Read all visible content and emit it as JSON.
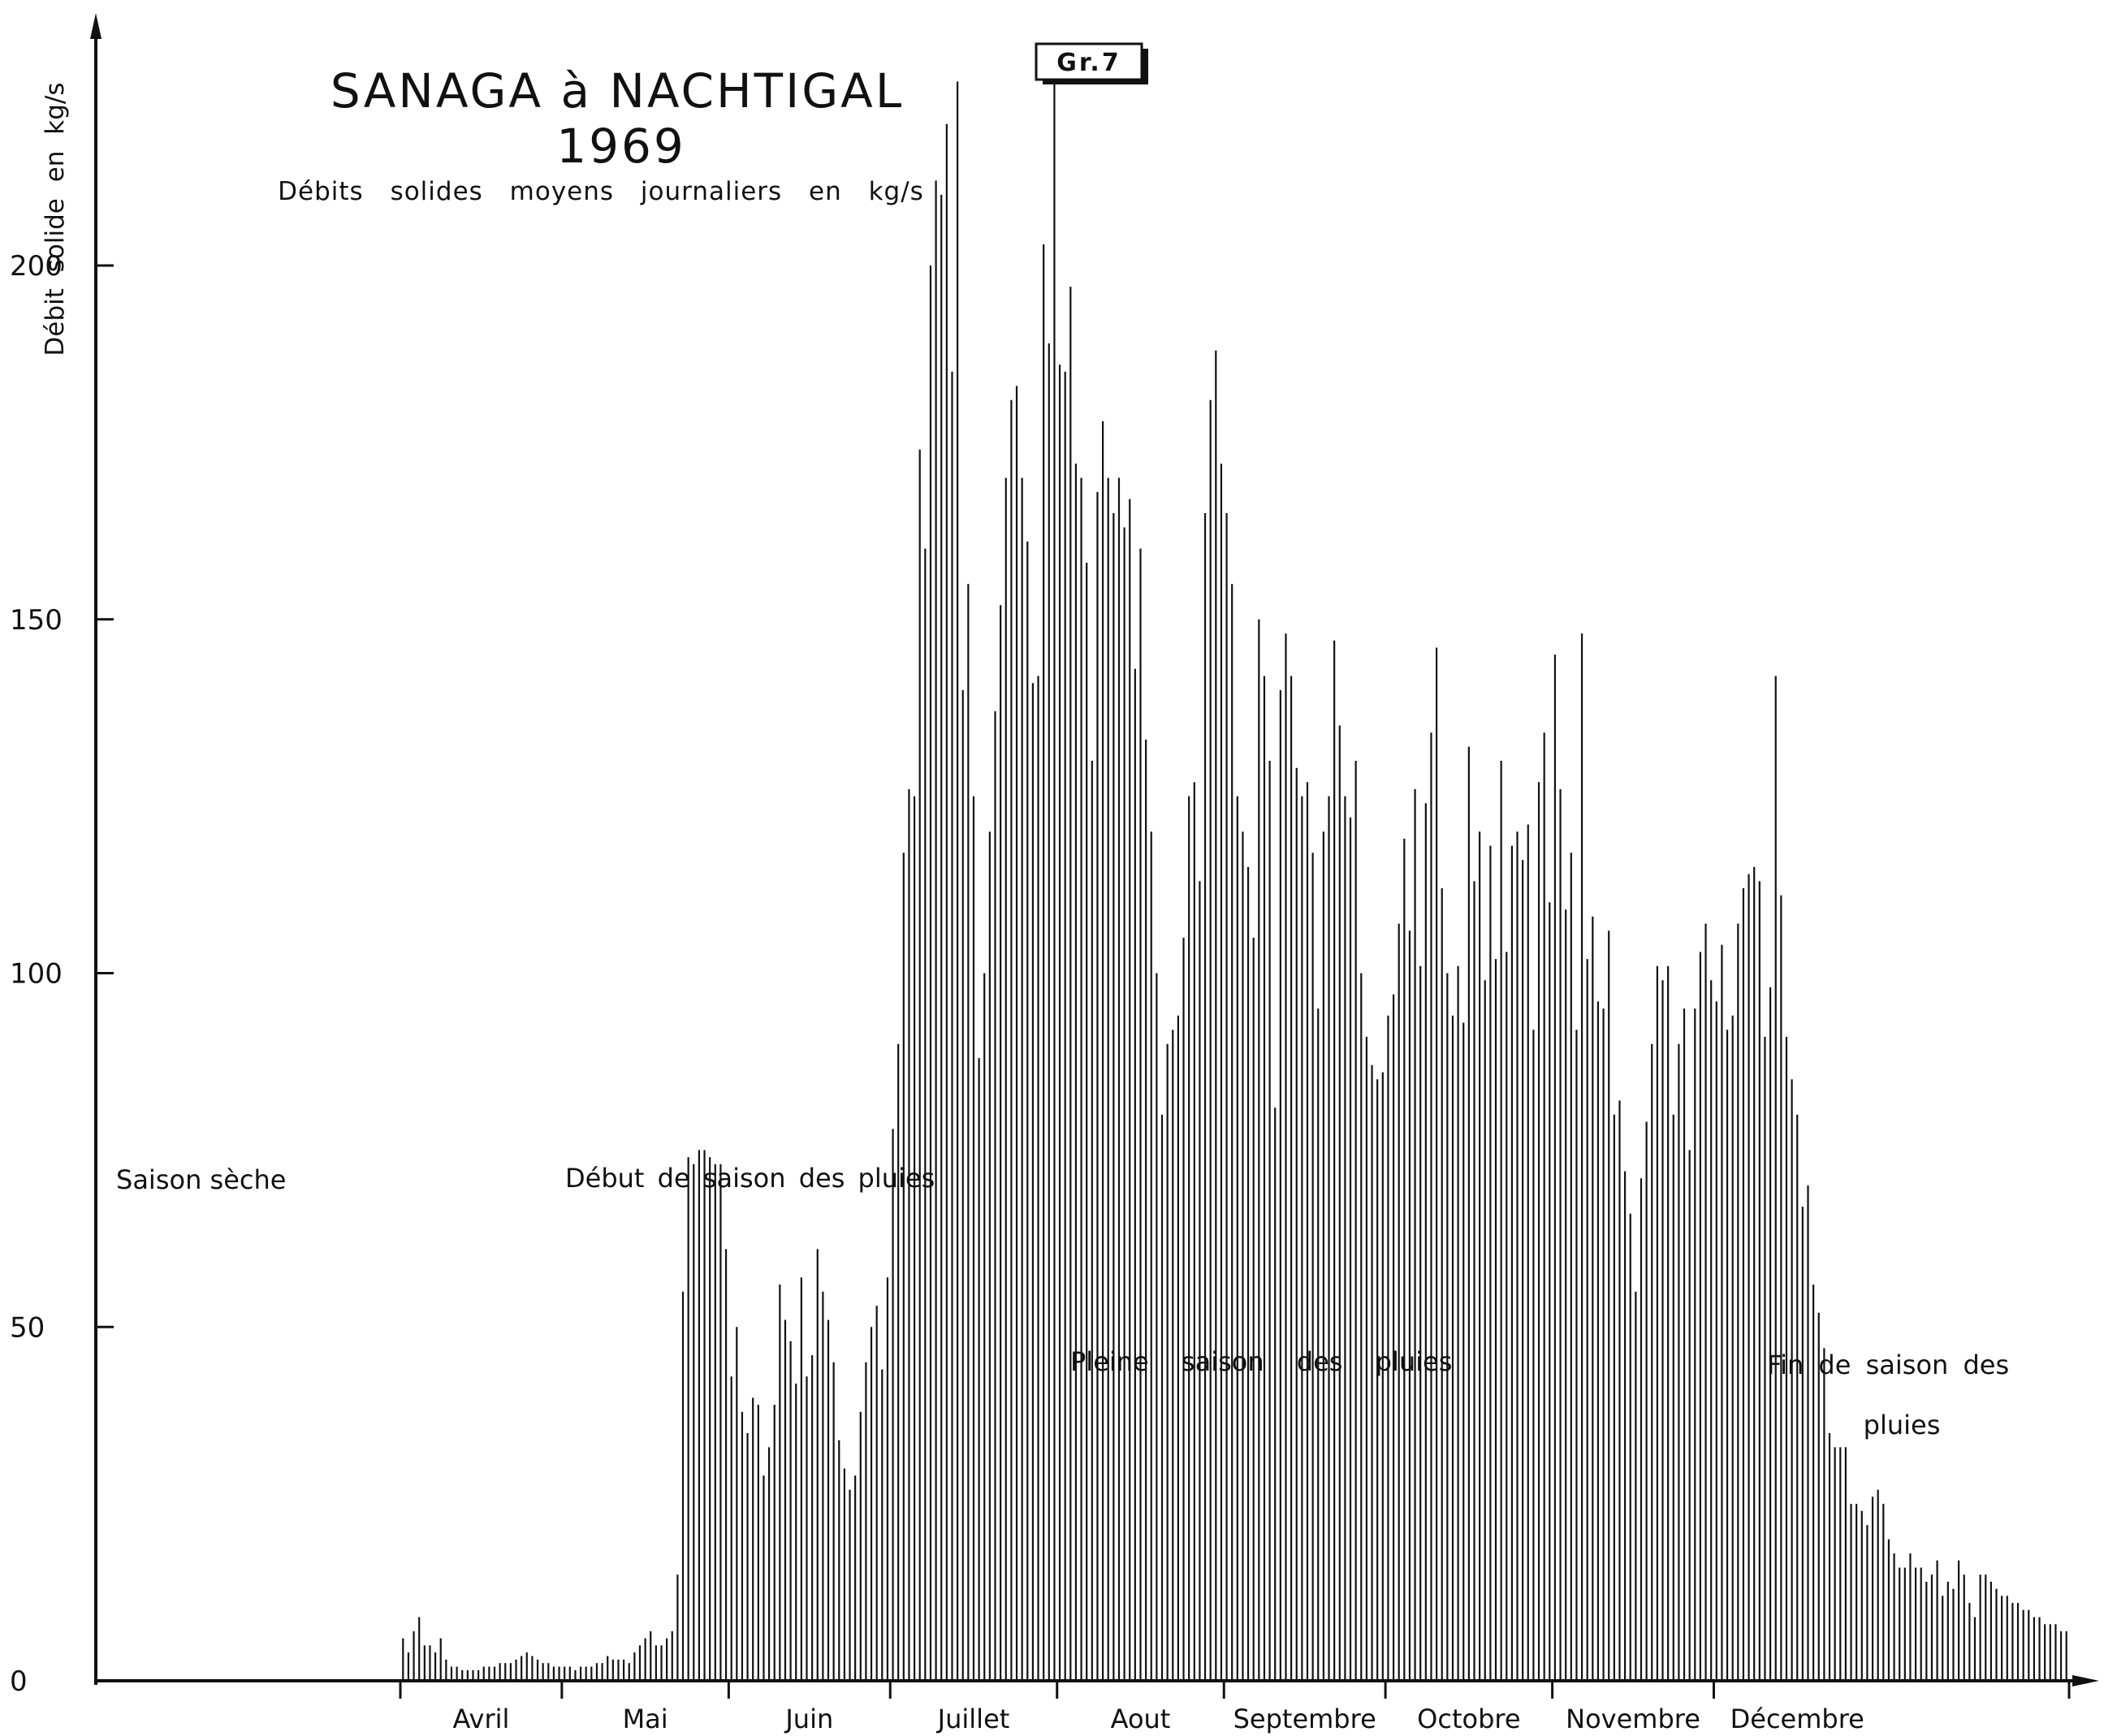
{
  "chart_data": {
    "type": "bar",
    "title": "SANAGA à NACHTIGAL",
    "subtitle": "1969",
    "caption": "Débits solides moyens journaliers en kg/s",
    "figure_label": "Gr.7",
    "ylabel": "Débit solide en kg/s",
    "xlabel": "",
    "ylim": [
      0,
      230
    ],
    "yticks": [
      0,
      50,
      100,
      150,
      200
    ],
    "grid": false,
    "annotations": [
      "Saison sèche",
      "Début de saison des pluies",
      "Pleine saison des pluies",
      "Fin de saison des",
      "pluies"
    ],
    "months": [
      {
        "label": "Avril",
        "start_day": 0,
        "days": 30
      },
      {
        "label": "Mai",
        "start_day": 30,
        "days": 31
      },
      {
        "label": "Juin",
        "start_day": 61,
        "days": 30
      },
      {
        "label": "Juillet",
        "start_day": 91,
        "days": 31
      },
      {
        "label": "Aout",
        "start_day": 122,
        "days": 31
      },
      {
        "label": "Septembre",
        "start_day": 153,
        "days": 30
      },
      {
        "label": "Octobre",
        "start_day": 183,
        "days": 31
      },
      {
        "label": "Novembre",
        "start_day": 214,
        "days": 30
      },
      {
        "label": "Décembre",
        "start_day": 244,
        "days": 31
      }
    ],
    "series": [
      {
        "values": [
          6,
          4,
          7,
          9,
          5,
          5,
          4,
          6,
          3,
          2,
          2,
          1.5,
          1.5,
          1.5,
          1.5,
          2,
          2,
          2,
          2.5,
          2.5,
          2.5,
          3,
          3.5,
          4,
          3.5,
          3,
          2.5,
          2.5,
          2,
          2,
          2,
          2,
          1.5,
          2,
          2,
          2,
          2.5,
          2.5,
          3.5,
          3,
          3,
          3,
          2.5,
          4,
          5,
          6,
          7,
          5,
          5,
          6,
          7,
          15,
          55,
          74,
          73,
          75,
          75,
          74,
          73,
          73,
          61,
          43,
          50,
          38,
          35,
          40,
          39,
          29,
          33,
          39,
          56,
          51,
          48,
          42,
          57,
          43,
          46,
          61,
          55,
          51,
          45,
          34,
          30,
          27,
          29,
          38,
          45,
          50,
          53,
          44,
          57,
          78,
          90,
          117,
          126,
          125,
          174,
          160,
          200,
          212,
          210,
          220,
          185,
          226,
          140,
          155,
          125,
          88,
          100,
          120,
          137,
          152,
          170,
          181,
          183,
          170,
          161,
          141,
          142,
          203,
          189,
          226,
          186,
          185,
          197,
          172,
          170,
          158,
          130,
          168,
          178,
          170,
          165,
          170,
          163,
          167,
          143,
          160,
          133,
          120,
          100,
          80,
          90,
          92,
          94,
          105,
          125,
          127,
          113,
          165,
          181,
          188,
          172,
          165,
          155,
          125,
          120,
          115,
          105,
          150,
          142,
          130,
          81,
          140,
          148,
          142,
          129,
          125,
          127,
          117,
          95,
          120,
          125,
          147,
          135,
          125,
          122,
          130,
          100,
          91,
          87,
          85,
          86,
          94,
          97,
          107,
          119,
          106,
          126,
          101,
          124,
          134,
          146,
          112,
          100,
          94,
          101,
          93,
          132,
          113,
          120,
          99,
          118,
          102,
          130,
          103,
          118,
          120,
          116,
          121,
          92,
          127,
          134,
          110,
          145,
          126,
          109,
          117,
          92,
          148,
          102,
          108,
          96,
          95,
          106,
          80,
          82,
          72,
          66,
          55,
          71,
          79,
          90,
          101,
          99,
          101,
          80,
          90,
          95,
          75,
          95,
          103,
          107,
          99,
          96,
          104,
          92,
          94,
          107,
          112,
          114,
          115,
          113,
          91,
          98,
          142,
          111,
          91,
          85,
          80,
          67,
          70,
          56,
          52,
          47,
          35,
          33,
          33,
          33,
          25,
          25,
          24,
          22,
          26,
          27,
          25,
          20,
          18,
          16,
          16,
          18,
          16,
          16,
          14,
          15,
          17,
          12,
          14,
          13,
          17,
          15,
          11,
          9,
          15,
          15,
          14,
          13,
          12,
          12,
          11,
          11,
          10,
          10,
          9,
          9,
          8,
          8,
          8,
          7,
          7
        ]
      }
    ]
  }
}
